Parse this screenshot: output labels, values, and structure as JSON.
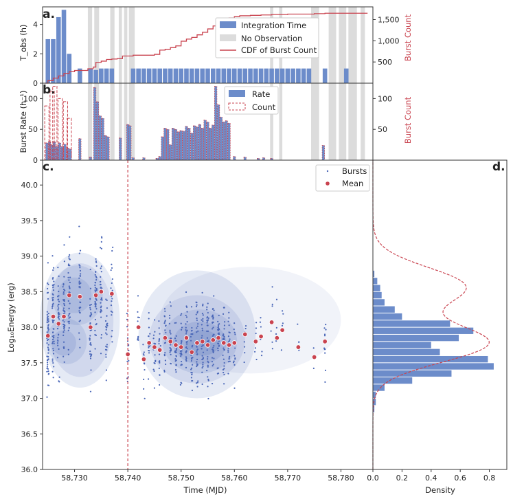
{
  "colors": {
    "blue": "#6c8cca",
    "red": "#c9434f",
    "gray": "#dcdcdc",
    "kde": "#4a67b8",
    "axis": "#333333"
  },
  "chart_data": [
    {
      "panel": "a",
      "type": "bar",
      "label": "a.",
      "ylabel": "T_obs (h)",
      "y2label": "Burst Count",
      "ylim": [
        0,
        5.2
      ],
      "yticks": [
        "0",
        "2",
        "4"
      ],
      "y2lim": [
        0,
        1800
      ],
      "y2ticks": [
        "500",
        "1,000",
        "1,500"
      ],
      "legend": [
        "Integration Time",
        "No Observation",
        "CDF of Burst Count"
      ],
      "legend_position": "top-center",
      "no_observation_ranges": [
        [
          58732.5,
          58733.3
        ],
        [
          58733.7,
          58734.6
        ],
        [
          58736.7,
          58737.5
        ],
        [
          58738.3,
          58738.9
        ],
        [
          58739.3,
          58739.9
        ],
        [
          58740.2,
          58741.3
        ],
        [
          58766.7,
          58767.3
        ],
        [
          58768.4,
          58769.0
        ],
        [
          58774.4,
          58775.9
        ],
        [
          58777.7,
          58779.1
        ],
        [
          58779.6,
          58781.0
        ],
        [
          58781.4,
          58783.0
        ],
        [
          58783.7,
          58784.5
        ]
      ],
      "integration_time": [
        [
          58725,
          3
        ],
        [
          58726,
          3
        ],
        [
          58727,
          4.5
        ],
        [
          58728,
          5
        ],
        [
          58729,
          2
        ],
        [
          58731,
          1
        ],
        [
          58733,
          1
        ],
        [
          58734,
          0.9
        ],
        [
          58735,
          1
        ],
        [
          58736,
          1
        ],
        [
          58737,
          1
        ],
        [
          58741,
          1
        ],
        [
          58742,
          1
        ],
        [
          58743,
          1
        ],
        [
          58744,
          1
        ],
        [
          58745,
          1
        ],
        [
          58746,
          1
        ],
        [
          58747,
          1
        ],
        [
          58748,
          1
        ],
        [
          58749,
          1
        ],
        [
          58750,
          1
        ],
        [
          58751,
          1
        ],
        [
          58752,
          1
        ],
        [
          58753,
          1
        ],
        [
          58754,
          1
        ],
        [
          58755,
          1
        ],
        [
          58756,
          1
        ],
        [
          58757,
          1
        ],
        [
          58758,
          1
        ],
        [
          58759,
          1
        ],
        [
          58760,
          1
        ],
        [
          58761,
          1
        ],
        [
          58762,
          1
        ],
        [
          58763,
          1
        ],
        [
          58764,
          1
        ],
        [
          58765,
          1
        ],
        [
          58766,
          1
        ],
        [
          58767,
          1
        ],
        [
          58768,
          1
        ],
        [
          58769,
          1
        ],
        [
          58770,
          1
        ],
        [
          58771,
          1
        ],
        [
          58772,
          1
        ],
        [
          58773,
          1
        ],
        [
          58774,
          1
        ],
        [
          58777,
          1
        ],
        [
          58781,
          1
        ]
      ],
      "cdf_burst_count": [
        [
          58724.4,
          0
        ],
        [
          58725,
          60
        ],
        [
          58726,
          120
        ],
        [
          58727,
          170
        ],
        [
          58728,
          230
        ],
        [
          58729,
          270
        ],
        [
          58730,
          300
        ],
        [
          58732,
          300
        ],
        [
          58732.5,
          340
        ],
        [
          58733.5,
          380
        ],
        [
          58734,
          490
        ],
        [
          58735,
          520
        ],
        [
          58736,
          560
        ],
        [
          58737,
          570
        ],
        [
          58738,
          580
        ],
        [
          58739,
          640
        ],
        [
          58741,
          660
        ],
        [
          58745,
          680
        ],
        [
          58746,
          780
        ],
        [
          58747,
          800
        ],
        [
          58748,
          840
        ],
        [
          58749,
          880
        ],
        [
          58750,
          990
        ],
        [
          58751,
          1040
        ],
        [
          58752,
          1080
        ],
        [
          58753,
          1140
        ],
        [
          58754,
          1200
        ],
        [
          58755,
          1280
        ],
        [
          58756,
          1350
        ],
        [
          58757,
          1400
        ],
        [
          58758,
          1480
        ],
        [
          58759,
          1540
        ],
        [
          58760,
          1570
        ],
        [
          58761,
          1590
        ],
        [
          58763,
          1600
        ],
        [
          58765,
          1610
        ],
        [
          58767,
          1620
        ],
        [
          58770,
          1630
        ],
        [
          58775,
          1640
        ],
        [
          58777,
          1650
        ],
        [
          58785,
          1650
        ]
      ]
    },
    {
      "panel": "b",
      "type": "bar",
      "label": "b.",
      "ylabel": "Burst Rate (h⁻¹)",
      "y2label": "Burst Count",
      "ylim": [
        0,
        125
      ],
      "yticks": [
        "0",
        "50",
        "100"
      ],
      "y2lim": [
        0,
        125
      ],
      "y2ticks": [
        "50",
        "100"
      ],
      "legend": [
        "Rate",
        "Count"
      ],
      "legend_position": "top-center",
      "rate": [
        [
          58724.8,
          28
        ],
        [
          58725.3,
          30
        ],
        [
          58725.8,
          25
        ],
        [
          58726.2,
          30
        ],
        [
          58726.7,
          22
        ],
        [
          58727.2,
          28
        ],
        [
          58727.7,
          22
        ],
        [
          58728.2,
          26
        ],
        [
          58728.7,
          20
        ],
        [
          58729.2,
          18
        ],
        [
          58731.0,
          35
        ],
        [
          58733.0,
          5
        ],
        [
          58733.8,
          118
        ],
        [
          58734.3,
          95
        ],
        [
          58734.8,
          72
        ],
        [
          58735.3,
          68
        ],
        [
          58735.8,
          40
        ],
        [
          58736.3,
          38
        ],
        [
          58738.6,
          36
        ],
        [
          58740.0,
          58
        ],
        [
          58740.4,
          56
        ],
        [
          58741.0,
          4
        ],
        [
          58743.0,
          4
        ],
        [
          58745.5,
          3
        ],
        [
          58746.0,
          6
        ],
        [
          58746.5,
          38
        ],
        [
          58747.0,
          52
        ],
        [
          58747.5,
          50
        ],
        [
          58748.0,
          25
        ],
        [
          58748.5,
          52
        ],
        [
          58749.0,
          50
        ],
        [
          58749.5,
          46
        ],
        [
          58750.0,
          48
        ],
        [
          58750.5,
          47
        ],
        [
          58751.0,
          55
        ],
        [
          58751.5,
          52
        ],
        [
          58752.0,
          44
        ],
        [
          58752.5,
          56
        ],
        [
          58753.0,
          54
        ],
        [
          58753.5,
          58
        ],
        [
          58754.0,
          52
        ],
        [
          58754.5,
          65
        ],
        [
          58755.0,
          62
        ],
        [
          58755.5,
          52
        ],
        [
          58756.0,
          57
        ],
        [
          58756.5,
          120
        ],
        [
          58757.0,
          90
        ],
        [
          58757.5,
          70
        ],
        [
          58758.0,
          62
        ],
        [
          58758.5,
          64
        ],
        [
          58759.0,
          60
        ],
        [
          58760.0,
          6
        ],
        [
          58762.0,
          5
        ],
        [
          58764.5,
          3
        ],
        [
          58765.5,
          4
        ],
        [
          58767.0,
          3
        ],
        [
          58776.7,
          24
        ]
      ],
      "count": [
        [
          58724.8,
          88
        ],
        [
          58725.8,
          112
        ],
        [
          58726.3,
          120
        ],
        [
          58727.3,
          100
        ],
        [
          58728.3,
          95
        ],
        [
          58729.0,
          68
        ]
      ]
    },
    {
      "panel": "c",
      "type": "scatter",
      "label": "c.",
      "xlabel": "Time (MJD)",
      "ylabel": "Log₁₀Energy (erg)",
      "xlim": [
        58724,
        58786
      ],
      "ylim": [
        36.0,
        40.35
      ],
      "xticks": [
        "58,730",
        "58,740",
        "58,750",
        "58,760",
        "58,770",
        "58,780"
      ],
      "yticks": [
        "36.0",
        "36.5",
        "37.0",
        "37.5",
        "38.0",
        "38.5",
        "39.0",
        "39.5",
        "40.0"
      ],
      "legend": [
        "Bursts",
        "Mean"
      ],
      "legend_position": "top-right",
      "vline_x": 58740,
      "mean": [
        [
          58725,
          37.88
        ],
        [
          58726,
          38.15
        ],
        [
          58727,
          38.05
        ],
        [
          58728,
          38.15
        ],
        [
          58729,
          38.45
        ],
        [
          58731,
          38.43
        ],
        [
          58733,
          38.0
        ],
        [
          58734,
          38.45
        ],
        [
          58735,
          38.5
        ],
        [
          58737,
          38.47
        ],
        [
          58740,
          37.62
        ],
        [
          58742,
          38.0
        ],
        [
          58743,
          37.55
        ],
        [
          58744,
          37.78
        ],
        [
          58745,
          37.72
        ],
        [
          58746,
          37.68
        ],
        [
          58747,
          37.85
        ],
        [
          58748,
          37.8
        ],
        [
          58749,
          37.75
        ],
        [
          58750,
          37.72
        ],
        [
          58751,
          37.85
        ],
        [
          58752,
          37.65
        ],
        [
          58753,
          37.78
        ],
        [
          58754,
          37.8
        ],
        [
          58755,
          37.75
        ],
        [
          58756,
          37.82
        ],
        [
          58757,
          37.85
        ],
        [
          58758,
          37.78
        ],
        [
          58759,
          37.75
        ],
        [
          58760,
          37.78
        ],
        [
          58762,
          37.9
        ],
        [
          58764,
          37.8
        ],
        [
          58765,
          37.87
        ],
        [
          58767,
          38.07
        ],
        [
          58768,
          37.85
        ],
        [
          58769,
          37.96
        ],
        [
          58772,
          37.72
        ],
        [
          58775,
          37.58
        ],
        [
          58777,
          37.8
        ]
      ]
    },
    {
      "panel": "d",
      "type": "bar",
      "label": "d.",
      "xlabel": "Density",
      "xlim": [
        0,
        0.92
      ],
      "xticks": [
        "0.0",
        "0.2",
        "0.4",
        "0.6",
        "0.8"
      ],
      "bin_edges_from": 36.8,
      "bin_width": 0.1,
      "density": [
        0.01,
        0.02,
        0.02,
        0.08,
        0.27,
        0.54,
        0.83,
        0.79,
        0.46,
        0.4,
        0.59,
        0.69,
        0.53,
        0.2,
        0.15,
        0.08,
        0.06,
        0.05,
        0.03,
        0.01
      ],
      "fit_curve": "double-gaussian (dashed red)"
    }
  ]
}
